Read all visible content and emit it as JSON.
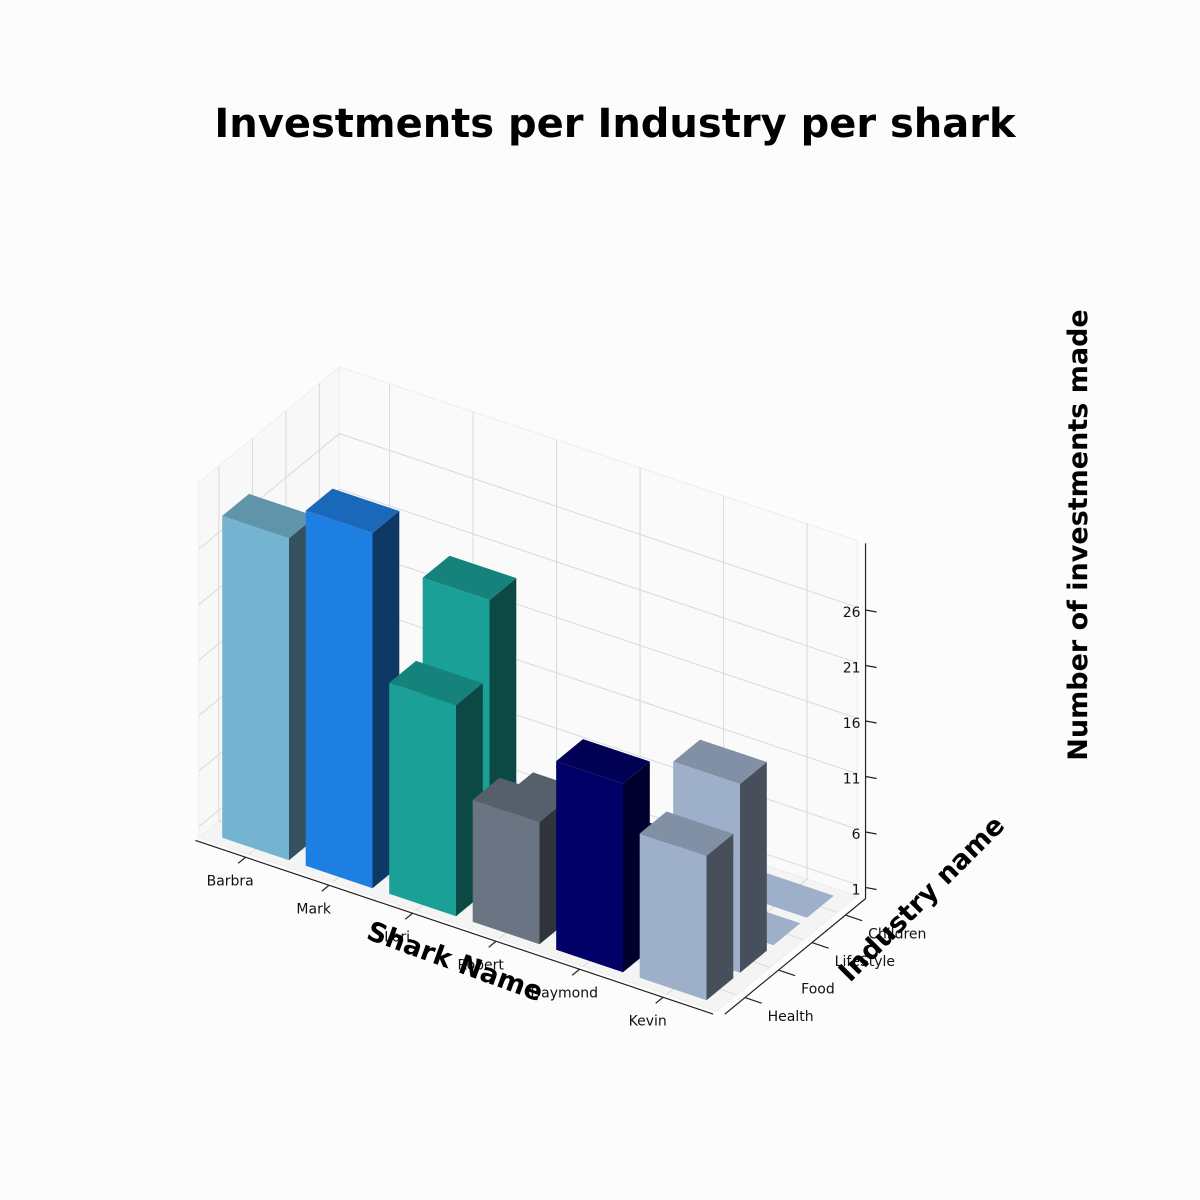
{
  "chart_data": {
    "type": "bar3d",
    "title": "Investments per Industry per shark",
    "xlabel": "Shark Name",
    "ylabel": "Industry name",
    "zlabel": "Number of investments made",
    "sharks": [
      "Barbra",
      "Mark",
      "Lori",
      "Robert",
      "Daymond",
      "Kevin"
    ],
    "industries": [
      "Health",
      "Food",
      "LifeStyle",
      "Children"
    ],
    "z_ticks": [
      1,
      6,
      11,
      16,
      21,
      26
    ],
    "zlim": [
      0,
      32
    ],
    "colors": {
      "Barbra": "#75b4d1",
      "Mark": "#1e7fe3",
      "Lori": "#1aa097",
      "Robert": "#6a7482",
      "Daymond": "#000066",
      "Kevin": "#9eb0c9"
    },
    "series": [
      {
        "name": "Health",
        "values": [
          29,
          32,
          19,
          11,
          17,
          13
        ]
      },
      {
        "name": "Food",
        "values": [
          8,
          0,
          26,
          9,
          8,
          17
        ]
      },
      {
        "name": "LifeStyle",
        "values": [
          0,
          0,
          0,
          0,
          0,
          0
        ]
      },
      {
        "name": "Children",
        "values": [
          0,
          0,
          0,
          0,
          0,
          0
        ]
      }
    ]
  }
}
